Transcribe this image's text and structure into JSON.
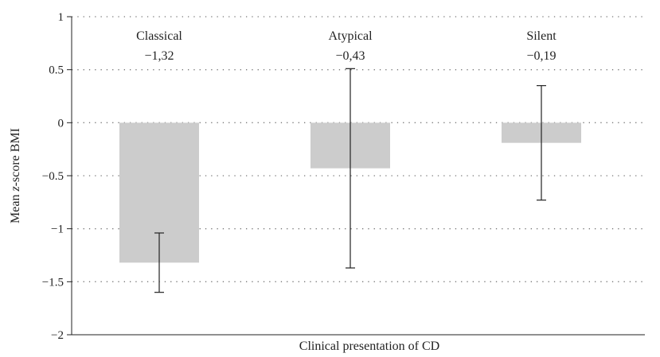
{
  "chart_data": {
    "type": "bar",
    "categories": [
      "Classical",
      "Atypical",
      "Silent"
    ],
    "value_labels": [
      "−1,32",
      "−0,43",
      "−0,19"
    ],
    "values": [
      -1.32,
      -0.43,
      -0.19
    ],
    "error_low": [
      -1.6,
      -1.37,
      -0.73
    ],
    "error_high": [
      -1.04,
      0.51,
      0.35
    ],
    "xlabel": "Clinical presentation of CD",
    "ylabel_prefix": "Mean ",
    "ylabel_italic": "z",
    "ylabel_suffix": "-score BMI",
    "ylim": [
      -2,
      1
    ],
    "yticks": [
      1,
      0.5,
      0,
      -0.5,
      -1,
      -1.5,
      -2
    ],
    "ytick_labels": [
      "1",
      "0.5",
      "0",
      "−0.5",
      "−1",
      "−1.5",
      "−2"
    ],
    "grid": "dotted horizontal",
    "bar_color": "#cccccc",
    "error_bar_color": "#222222",
    "grid_color": "#777777"
  }
}
